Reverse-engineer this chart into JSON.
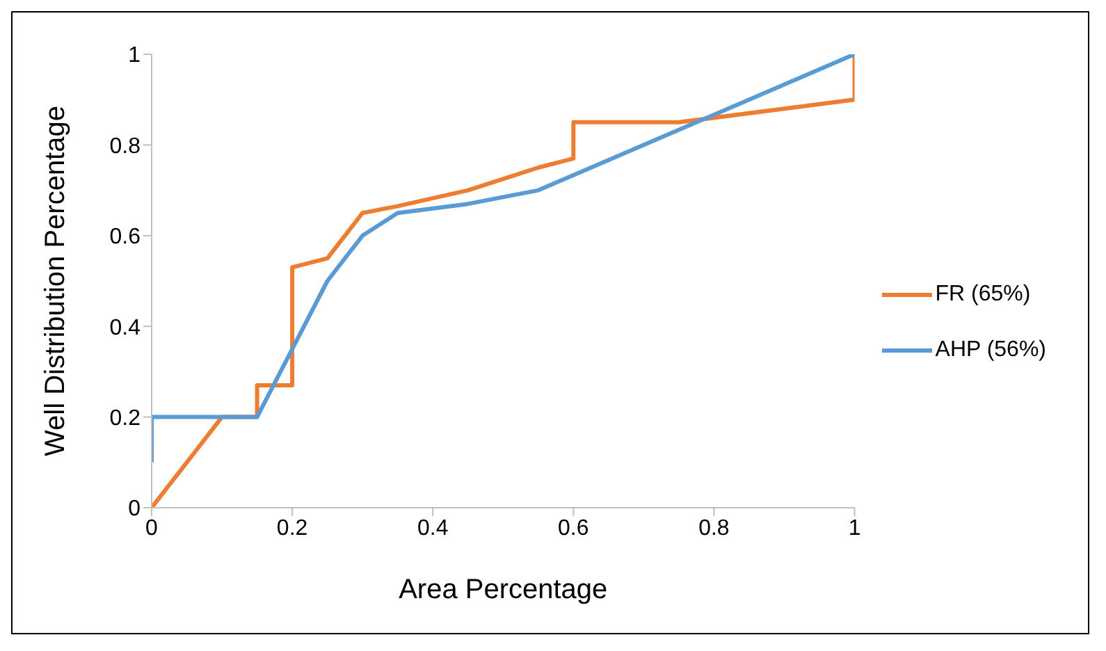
{
  "chart_data": {
    "type": "line",
    "xlabel": "Area Percentage",
    "ylabel": "Well Distribution Percentage",
    "xlim": [
      0,
      1
    ],
    "ylim": [
      0,
      1
    ],
    "xticks": [
      0,
      0.2,
      0.4,
      0.6,
      0.8,
      1
    ],
    "yticks": [
      0,
      0.2,
      0.4,
      0.6,
      0.8,
      1
    ],
    "grid": false,
    "legend": "right",
    "marker": "none",
    "line_style": "solid",
    "series": [
      {
        "name": "FR (65%)",
        "color": "#ed7d31",
        "x": [
          0,
          0.1,
          0.15,
          0.15,
          0.2,
          0.2,
          0.25,
          0.3,
          0.35,
          0.45,
          0.55,
          0.6,
          0.6,
          0.75,
          1,
          1
        ],
        "values": [
          0,
          0.2,
          0.2,
          0.27,
          0.27,
          0.53,
          0.55,
          0.65,
          0.665,
          0.7,
          0.75,
          0.77,
          0.85,
          0.85,
          0.9,
          1
        ]
      },
      {
        "name": "AHP (56%)",
        "color": "#5b9bd5",
        "x": [
          0,
          0,
          0.15,
          0.2,
          0.25,
          0.3,
          0.35,
          0.45,
          0.55,
          1
        ],
        "values": [
          0.1,
          0.2,
          0.2,
          0.35,
          0.5,
          0.6,
          0.65,
          0.67,
          0.7,
          1
        ]
      }
    ]
  }
}
